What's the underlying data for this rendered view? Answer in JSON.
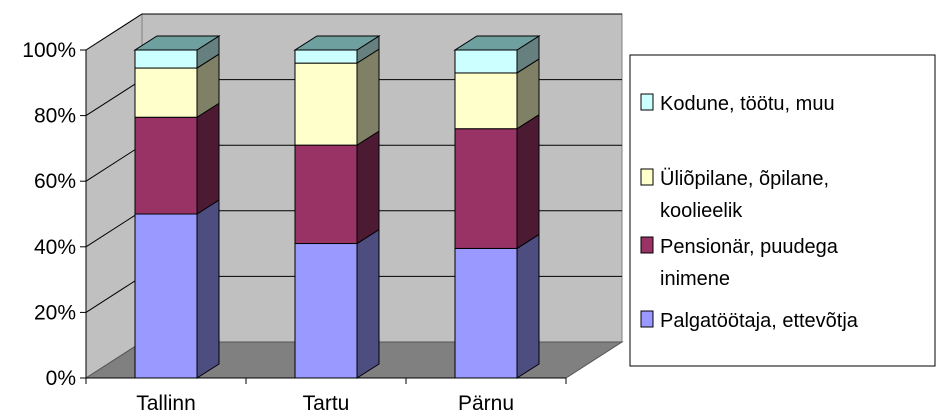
{
  "chart_data": {
    "type": "bar",
    "stacked": "percent",
    "three_d": true,
    "title": "",
    "xlabel": "",
    "ylabel": "",
    "ylim": [
      0,
      100
    ],
    "y_ticks": [
      "0%",
      "20%",
      "40%",
      "60%",
      "80%",
      "100%"
    ],
    "categories": [
      "Tallinn",
      "Tartu",
      "Pärnu"
    ],
    "grid": true,
    "legend_position": "right",
    "series": [
      {
        "name": "Palgatöötaja, ettevõtja",
        "values": [
          50,
          41,
          39.5
        ],
        "color": "#9999ff",
        "side_color": "#4d4d80",
        "top_color": "#7a7acc"
      },
      {
        "name": "Pensionär, puudega inimene",
        "values": [
          29.5,
          30,
          36.5
        ],
        "color": "#993366",
        "side_color": "#4d1a33",
        "top_color": "#7a2952"
      },
      {
        "name": "Üliõpilane, õpilane, koolieelik",
        "values": [
          15,
          25,
          17
        ],
        "color": "#ffffcc",
        "side_color": "#808066",
        "top_color": "#ccccaa"
      },
      {
        "name": "Kodune, töötu, muu",
        "values": [
          5.5,
          4,
          7
        ],
        "color": "#ccffff",
        "side_color": "#668080",
        "top_color": "#6fa0a0"
      }
    ]
  },
  "legend": {
    "items": [
      {
        "lines": [
          "Kodune, töötu, muu"
        ],
        "color": "#ccffff"
      },
      {
        "lines": [
          "Üliõpilane, õpilane,",
          "koolieelik"
        ],
        "color": "#ffffcc"
      },
      {
        "lines": [
          "Pensionär, puudega",
          "inimene"
        ],
        "color": "#993366"
      },
      {
        "lines": [
          "Palgatöötaja, ettevõtja"
        ],
        "color": "#9999ff"
      }
    ]
  }
}
